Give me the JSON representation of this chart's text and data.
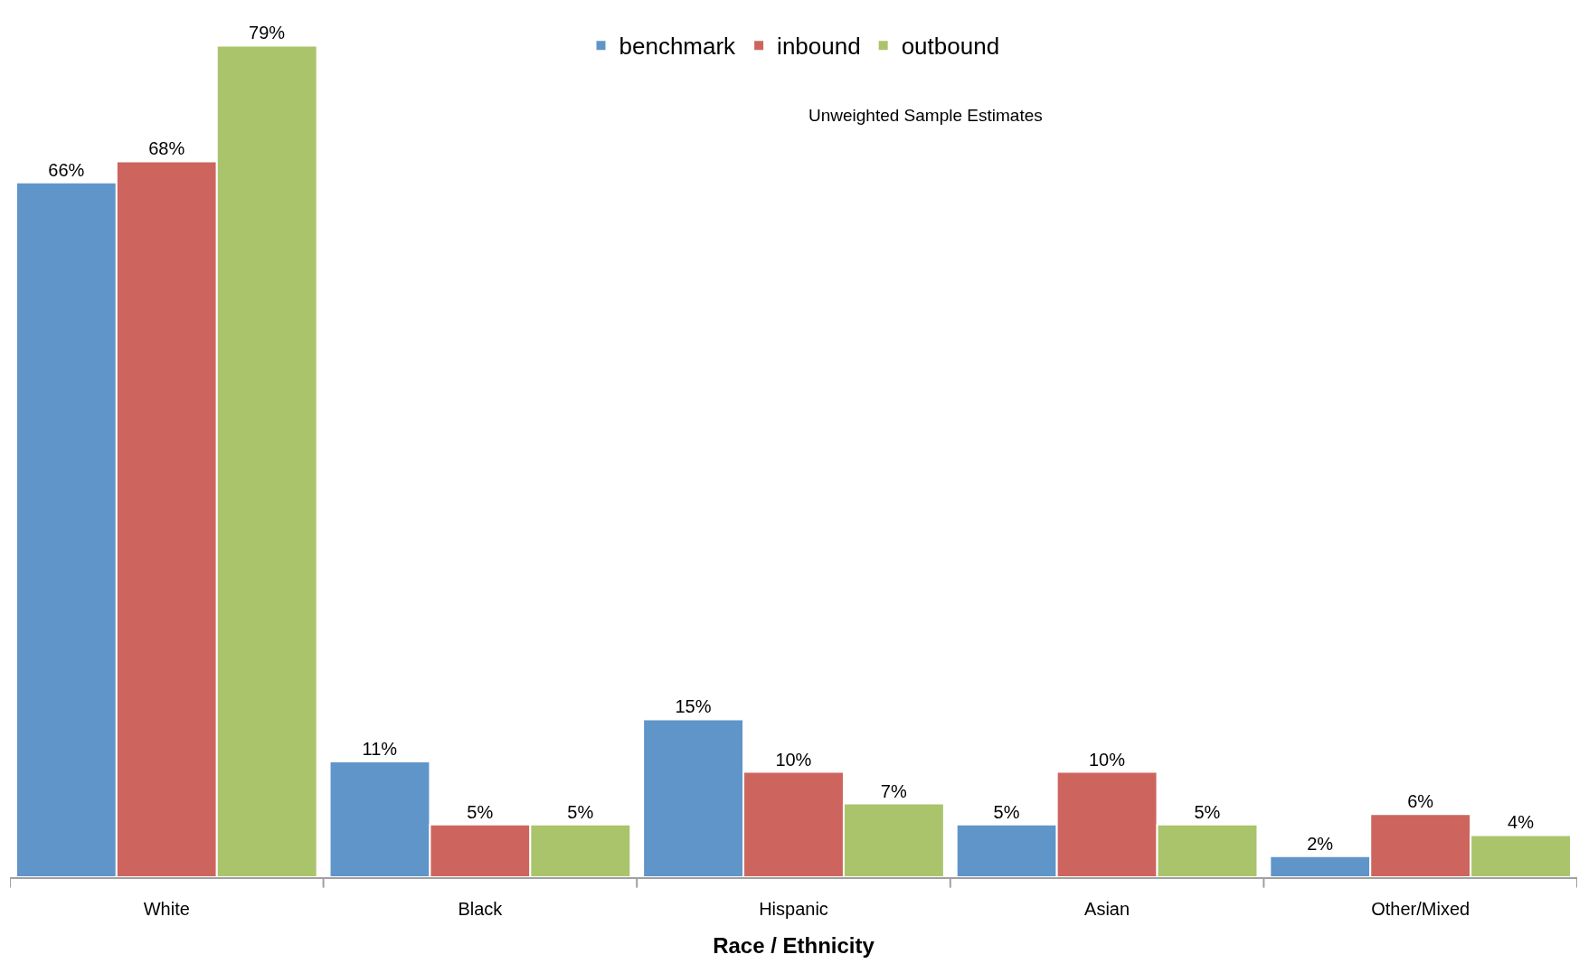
{
  "chart_data": {
    "type": "bar",
    "xlabel": "Race / Ethnicity",
    "categories": [
      "White",
      "Black",
      "Hispanic",
      "Asian",
      "Other/Mixed"
    ],
    "series": [
      {
        "name": "benchmark",
        "color": "#6095c9",
        "values": [
          66,
          11,
          15,
          5,
          2
        ],
        "value_labels": [
          "66%",
          "11%",
          "15%",
          "5%",
          "2%"
        ]
      },
      {
        "name": "inbound",
        "color": "#cd655e",
        "values": [
          68,
          5,
          10,
          10,
          6
        ],
        "value_labels": [
          "68%",
          "5%",
          "10%",
          "10%",
          "6%"
        ]
      },
      {
        "name": "outbound",
        "color": "#aac46b",
        "values": [
          79,
          5,
          7,
          5,
          4
        ],
        "value_labels": [
          "79%",
          "5%",
          "7%",
          "5%",
          "4%"
        ]
      }
    ],
    "annotations": [
      "Unweighted Sample Estimates"
    ],
    "legend": "top",
    "tick_labels": "x"
  }
}
